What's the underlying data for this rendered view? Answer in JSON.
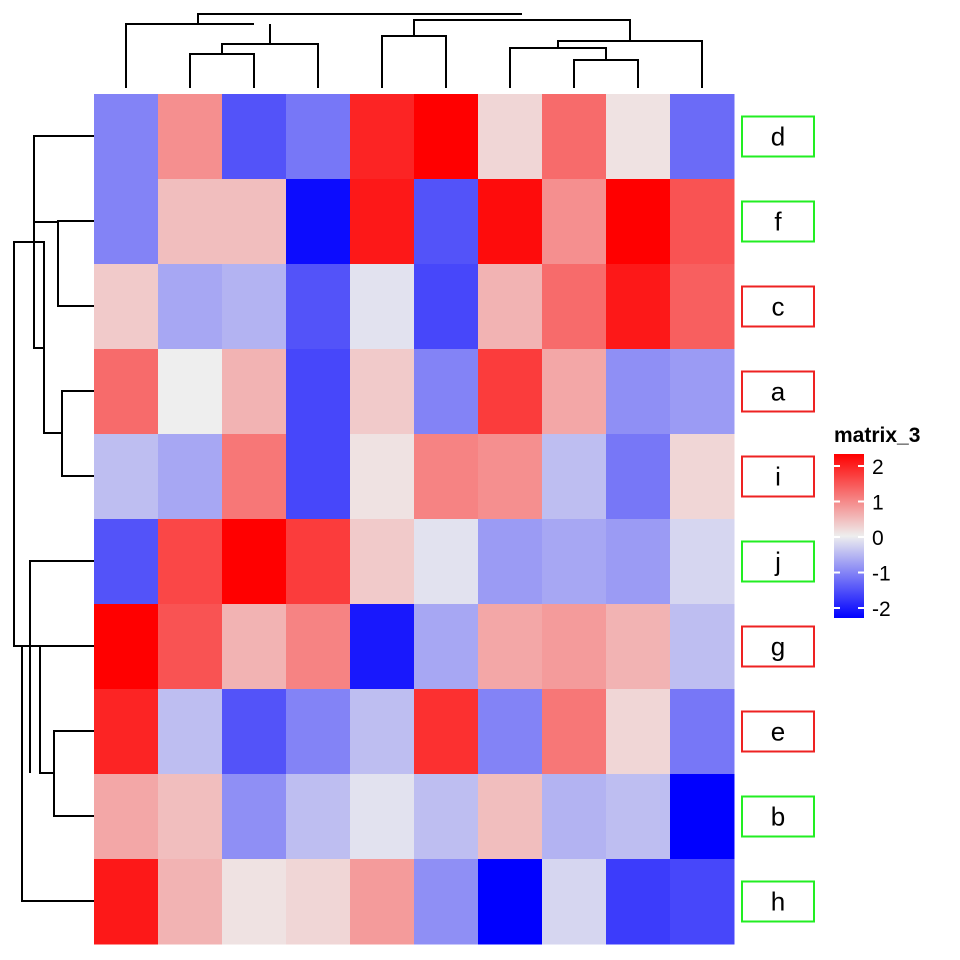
{
  "chart_data": {
    "type": "heatmap",
    "title": "",
    "xlabel": "",
    "ylabel": "",
    "rows": [
      "d",
      "f",
      "c",
      "a",
      "i",
      "j",
      "g",
      "e",
      "b",
      "h"
    ],
    "row_label_border_colors": [
      "#22ee22",
      "#22ee22",
      "#ee2222",
      "#ee2222",
      "#ee2222",
      "#22ee22",
      "#ee2222",
      "#ee2222",
      "#22ee22",
      "#22ee22"
    ],
    "values": [
      [
        -0.9,
        0.8,
        -1.3,
        -1.0,
        1.7,
        2.2,
        0.2,
        1.1,
        0.1,
        -1.1
      ],
      [
        -0.9,
        0.4,
        0.4,
        -1.9,
        1.8,
        -1.3,
        1.9,
        0.8,
        2.0,
        1.3
      ],
      [
        0.3,
        -0.6,
        -0.5,
        -1.3,
        -0.1,
        -1.4,
        0.5,
        1.1,
        1.8,
        1.2
      ],
      [
        1.1,
        0.0,
        0.5,
        -1.4,
        0.3,
        -0.9,
        1.5,
        0.6,
        -0.8,
        -0.7
      ],
      [
        -0.4,
        -0.6,
        1.0,
        -1.4,
        0.1,
        0.9,
        0.8,
        -0.4,
        -1.0,
        0.2
      ],
      [
        -1.3,
        1.4,
        2.1,
        1.5,
        0.3,
        -0.1,
        -0.7,
        -0.6,
        -0.7,
        -0.2
      ],
      [
        2.3,
        1.3,
        0.5,
        0.9,
        -1.8,
        -0.6,
        0.6,
        0.7,
        0.5,
        -0.4
      ],
      [
        1.7,
        -0.4,
        -1.3,
        -0.9,
        -0.4,
        1.6,
        -0.9,
        1.0,
        0.2,
        -1.0
      ],
      [
        0.6,
        0.4,
        -0.8,
        -0.4,
        -0.1,
        -0.4,
        0.4,
        -0.5,
        -0.4,
        -2.5
      ],
      [
        1.8,
        0.5,
        0.1,
        0.2,
        0.7,
        -0.8,
        -2.1,
        -0.2,
        -1.5,
        -1.4
      ]
    ],
    "legend": {
      "title": "matrix_3",
      "ticks": [
        2,
        1,
        0,
        -1,
        -2
      ],
      "tick_labels": [
        "2",
        "1",
        "0",
        "-1",
        "-2"
      ],
      "range": [
        -2,
        2
      ],
      "placement": "right"
    },
    "colors": {
      "high": "#ff0000",
      "mid": "#eeeeee",
      "low": "#0000ff",
      "dendrogram": "#000000"
    },
    "dendrograms": {
      "column": "top",
      "row": "left"
    }
  }
}
